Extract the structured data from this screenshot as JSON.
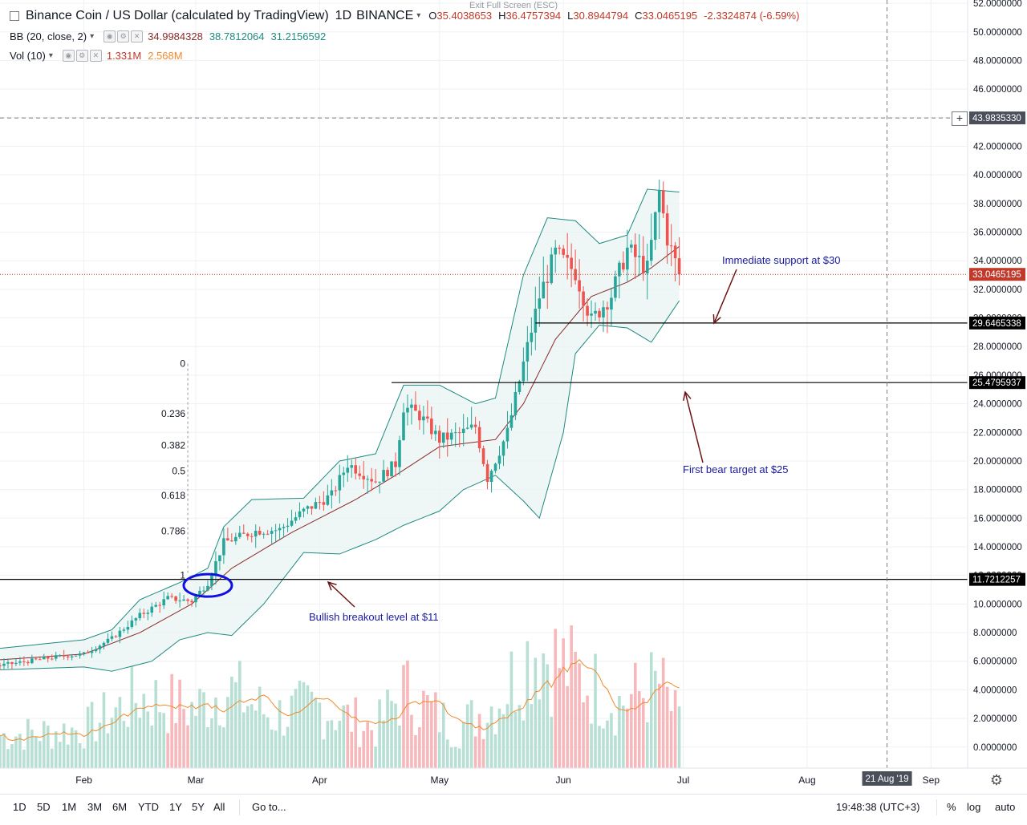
{
  "header": {
    "title": "Binance Coin / US Dollar (calculated by TradingView)",
    "interval": "1D",
    "exchange": "BINANCE",
    "ohlc": {
      "o_label": "O",
      "o": "35.4038653",
      "h_label": "H",
      "h": "36.4757394",
      "l_label": "L",
      "l": "30.8944794",
      "c_label": "C",
      "c": "33.0465195",
      "change": "-2.3324874 (-6.59%)"
    },
    "exit_fullscreen": "Exit Full Screen (ESC)"
  },
  "indicators": {
    "bb": {
      "label": "BB (20, close, 2)",
      "basis": "34.9984328",
      "upper": "38.7812064",
      "lower": "31.2156592"
    },
    "vol": {
      "label": "Vol (10)",
      "volume": "1.331M",
      "ma": "2.568M"
    }
  },
  "chart_data": {
    "type": "candlestick",
    "title": "Binance Coin / US Dollar (calculated by TradingView)",
    "xlabel": "",
    "ylabel": "",
    "ylim": [
      -1.2,
      52
    ],
    "x_tick_labels": [
      "Feb",
      "Mar",
      "Apr",
      "May",
      "Jun",
      "Jul",
      "Aug",
      "Sep"
    ],
    "x_tick_dates": [
      "2019-02-01",
      "2019-03-01",
      "2019-04-01",
      "2019-05-01",
      "2019-06-01",
      "2019-07-01",
      "2019-08-01",
      "2019-09-01"
    ],
    "x_range_dates": [
      "2019-01-11",
      "2019-09-16"
    ],
    "y_tick_labels": [
      "0.0000000",
      "2.0000000",
      "4.0000000",
      "6.0000000",
      "8.0000000",
      "10.0000000",
      "12.0000000",
      "14.0000000",
      "16.0000000",
      "18.0000000",
      "20.0000000",
      "22.0000000",
      "24.0000000",
      "26.0000000",
      "28.0000000",
      "30.0000000",
      "32.0000000",
      "34.0000000",
      "36.0000000",
      "38.0000000",
      "40.0000000",
      "42.0000000",
      "44.0000000",
      "46.0000000",
      "48.0000000",
      "50.0000000",
      "52.0000000"
    ],
    "y_ticks": [
      0,
      2,
      4,
      6,
      8,
      10,
      12,
      14,
      16,
      18,
      20,
      22,
      24,
      26,
      28,
      30,
      32,
      34,
      36,
      38,
      40,
      42,
      44,
      46,
      48,
      50,
      52
    ],
    "ohlc_anchors": [
      {
        "date": "2019-01-11",
        "close": 5.7
      },
      {
        "date": "2019-01-25",
        "close": 6.3
      },
      {
        "date": "2019-02-01",
        "close": 6.5
      },
      {
        "date": "2019-02-08",
        "close": 7.6
      },
      {
        "date": "2019-02-15",
        "close": 9.2
      },
      {
        "date": "2019-02-22",
        "close": 10.4
      },
      {
        "date": "2019-02-28",
        "close": 10.2
      },
      {
        "date": "2019-03-04",
        "close": 11.5
      },
      {
        "date": "2019-03-08",
        "close": 14.3
      },
      {
        "date": "2019-03-16",
        "close": 15.1
      },
      {
        "date": "2019-03-22",
        "close": 15.2
      },
      {
        "date": "2019-03-28",
        "close": 16.5
      },
      {
        "date": "2019-04-04",
        "close": 17.6
      },
      {
        "date": "2019-04-08",
        "close": 19.8
      },
      {
        "date": "2019-04-15",
        "close": 18.6
      },
      {
        "date": "2019-04-20",
        "close": 19.8
      },
      {
        "date": "2019-04-22",
        "close": 23.8
      },
      {
        "date": "2019-04-26",
        "close": 23.2
      },
      {
        "date": "2019-05-01",
        "close": 21.5
      },
      {
        "date": "2019-05-06",
        "close": 21.9
      },
      {
        "date": "2019-05-10",
        "close": 22.4
      },
      {
        "date": "2019-05-13",
        "close": 18.8
      },
      {
        "date": "2019-05-18",
        "close": 22.0
      },
      {
        "date": "2019-05-22",
        "close": 26.8
      },
      {
        "date": "2019-05-26",
        "close": 31.5
      },
      {
        "date": "2019-05-30",
        "close": 34.5
      },
      {
        "date": "2019-06-04",
        "close": 33.2
      },
      {
        "date": "2019-06-08",
        "close": 29.8
      },
      {
        "date": "2019-06-13",
        "close": 31.6
      },
      {
        "date": "2019-06-17",
        "close": 34.8
      },
      {
        "date": "2019-06-22",
        "close": 33.4
      },
      {
        "date": "2019-06-25",
        "close": 38.8
      },
      {
        "date": "2019-06-27",
        "close": 35.6
      },
      {
        "date": "2019-06-30",
        "close": 33.05
      }
    ],
    "bb_upper_anchors": [
      {
        "date": "2019-01-11",
        "value": 6.9
      },
      {
        "date": "2019-02-01",
        "value": 7.5
      },
      {
        "date": "2019-02-08",
        "value": 8.2
      },
      {
        "date": "2019-02-15",
        "value": 10.3
      },
      {
        "date": "2019-02-25",
        "value": 11.5
      },
      {
        "date": "2019-03-04",
        "value": 12.5
      },
      {
        "date": "2019-03-08",
        "value": 15.4
      },
      {
        "date": "2019-03-15",
        "value": 17.3
      },
      {
        "date": "2019-03-28",
        "value": 17.4
      },
      {
        "date": "2019-04-06",
        "value": 20.0
      },
      {
        "date": "2019-04-15",
        "value": 20.5
      },
      {
        "date": "2019-04-22",
        "value": 25.3
      },
      {
        "date": "2019-05-01",
        "value": 25.3
      },
      {
        "date": "2019-05-10",
        "value": 24.0
      },
      {
        "date": "2019-05-15",
        "value": 24.4
      },
      {
        "date": "2019-05-22",
        "value": 33.0
      },
      {
        "date": "2019-05-28",
        "value": 37.0
      },
      {
        "date": "2019-06-04",
        "value": 36.8
      },
      {
        "date": "2019-06-10",
        "value": 35.2
      },
      {
        "date": "2019-06-17",
        "value": 35.8
      },
      {
        "date": "2019-06-22",
        "value": 39.0
      },
      {
        "date": "2019-06-30",
        "value": 38.8
      }
    ],
    "bb_lower_anchors": [
      {
        "date": "2019-01-11",
        "value": 5.4
      },
      {
        "date": "2019-02-01",
        "value": 5.6
      },
      {
        "date": "2019-02-08",
        "value": 5.3
      },
      {
        "date": "2019-02-18",
        "value": 6.0
      },
      {
        "date": "2019-02-25",
        "value": 7.5
      },
      {
        "date": "2019-03-04",
        "value": 8.0
      },
      {
        "date": "2019-03-10",
        "value": 7.8
      },
      {
        "date": "2019-03-18",
        "value": 10.0
      },
      {
        "date": "2019-03-28",
        "value": 13.6
      },
      {
        "date": "2019-04-06",
        "value": 13.5
      },
      {
        "date": "2019-04-15",
        "value": 14.5
      },
      {
        "date": "2019-04-22",
        "value": 15.5
      },
      {
        "date": "2019-05-01",
        "value": 16.5
      },
      {
        "date": "2019-05-07",
        "value": 18.0
      },
      {
        "date": "2019-05-15",
        "value": 19.0
      },
      {
        "date": "2019-05-22",
        "value": 17.2
      },
      {
        "date": "2019-05-26",
        "value": 16.0
      },
      {
        "date": "2019-06-01",
        "value": 22.0
      },
      {
        "date": "2019-06-04",
        "value": 27.5
      },
      {
        "date": "2019-06-10",
        "value": 29.5
      },
      {
        "date": "2019-06-17",
        "value": 29.3
      },
      {
        "date": "2019-06-23",
        "value": 28.3
      },
      {
        "date": "2019-06-30",
        "value": 31.2
      }
    ],
    "bb_basis_anchors": [
      {
        "date": "2019-01-11",
        "value": 6.1
      },
      {
        "date": "2019-02-01",
        "value": 6.5
      },
      {
        "date": "2019-02-15",
        "value": 8.0
      },
      {
        "date": "2019-02-28",
        "value": 10.0
      },
      {
        "date": "2019-03-10",
        "value": 12.5
      },
      {
        "date": "2019-03-25",
        "value": 15.0
      },
      {
        "date": "2019-04-10",
        "value": 17.3
      },
      {
        "date": "2019-04-20",
        "value": 19.0
      },
      {
        "date": "2019-05-01",
        "value": 21.0
      },
      {
        "date": "2019-05-15",
        "value": 21.5
      },
      {
        "date": "2019-05-22",
        "value": 24.0
      },
      {
        "date": "2019-05-30",
        "value": 28.5
      },
      {
        "date": "2019-06-08",
        "value": 31.5
      },
      {
        "date": "2019-06-17",
        "value": 32.5
      },
      {
        "date": "2019-06-23",
        "value": 33.5
      },
      {
        "date": "2019-06-30",
        "value": 35.0
      }
    ],
    "horizontal_levels": [
      {
        "name": "resistance",
        "value": 29.6465338,
        "label": "29.6465338",
        "from_date": "2019-05-25"
      },
      {
        "name": "support",
        "value": 25.4795937,
        "label": "25.4795937",
        "from_date": "2019-04-19"
      },
      {
        "name": "breakout",
        "value": 11.7212257,
        "label": "11.7212257",
        "from_date": "2019-01-11"
      }
    ],
    "crosshair_value": {
      "value": 43.983533,
      "label": "43.9835330"
    },
    "last_price": {
      "value": 33.0465195,
      "label": "33.0465195"
    },
    "fib_levels": [
      {
        "label": "0",
        "value": 26.8
      },
      {
        "label": "0.236",
        "value": 23.3
      },
      {
        "label": "0.382",
        "value": 21.1
      },
      {
        "label": "0.5",
        "value": 19.3
      },
      {
        "label": "0.618",
        "value": 17.6
      },
      {
        "label": "0.786",
        "value": 15.1
      },
      {
        "label": "1",
        "value": 12.0
      }
    ],
    "fib_date": "2019-02-27",
    "volume_scale_max": 6.0,
    "volume_anchors": [
      {
        "date": "2019-01-11",
        "value": 1.0
      },
      {
        "date": "2019-02-01",
        "value": 1.2
      },
      {
        "date": "2019-02-15",
        "value": 2.2
      },
      {
        "date": "2019-03-01",
        "value": 1.8
      },
      {
        "date": "2019-03-08",
        "value": 2.5
      },
      {
        "date": "2019-03-20",
        "value": 1.6
      },
      {
        "date": "2019-04-01",
        "value": 1.9
      },
      {
        "date": "2019-04-15",
        "value": 1.2
      },
      {
        "date": "2019-04-22",
        "value": 2.4
      },
      {
        "date": "2019-05-05",
        "value": 1.2
      },
      {
        "date": "2019-05-15",
        "value": 2.0
      },
      {
        "date": "2019-05-25",
        "value": 3.8
      },
      {
        "date": "2019-06-05",
        "value": 2.8
      },
      {
        "date": "2019-06-15",
        "value": 2.0
      },
      {
        "date": "2019-06-25",
        "value": 2.6
      },
      {
        "date": "2019-06-30",
        "value": 1.331
      }
    ],
    "colors": {
      "up": "#26a69a",
      "down": "#ef5350",
      "bb_band": "#1e8a80",
      "bb_fill": "#e8f4f2",
      "bb_basis": "#8b2a2a",
      "vol_ma": "#f08a2c",
      "annotation": "#1a1aa0",
      "arrow": "#6b1414",
      "circle": "#1010e0",
      "price_line": "#c0392b"
    }
  },
  "annotations": {
    "support_text": "Immediate support at $30",
    "bear_target_text": "First bear target at $25",
    "breakout_text": "Bullish breakout level at $11"
  },
  "time_tooltip": "21 Aug '19",
  "bottom_bar": {
    "ranges": [
      "1D",
      "5D",
      "1M",
      "3M",
      "6M",
      "YTD",
      "1Y",
      "5Y",
      "All"
    ],
    "goto": "Go to...",
    "clock": "19:48:38 (UTC+3)",
    "percent": "%",
    "log": "log",
    "auto": "auto"
  }
}
